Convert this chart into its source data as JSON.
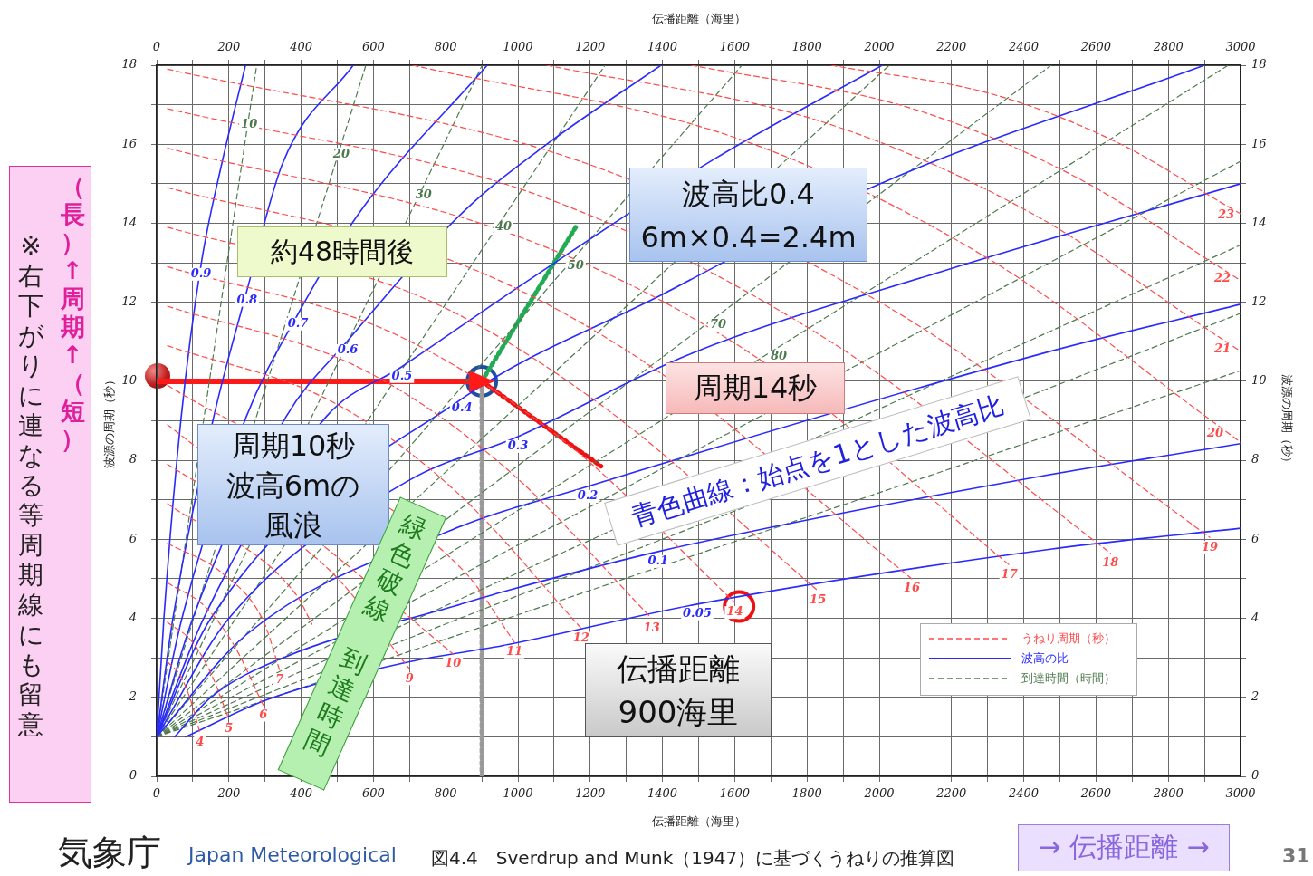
{
  "chart_data": {
    "type": "line",
    "xlabel": "伝播距離（海里）",
    "x2label": "伝播距離（海里）",
    "ylabel": "波源の周期（秒）",
    "y2label": "波源の周期（秒）",
    "xlim": [
      0,
      3000
    ],
    "x2lim": [
      0,
      3000
    ],
    "ylim": [
      0,
      18
    ],
    "y2lim": [
      0,
      18
    ],
    "xticks": [
      0,
      {
        "value": 100,
        "label": null
      },
      200,
      {
        "value": 300,
        "label": null
      },
      400,
      {
        "value": 500,
        "label": null
      },
      600,
      {
        "value": 700,
        "label": null
      },
      800,
      {
        "value": 900,
        "label": null
      },
      1000,
      {
        "value": 1100,
        "label": null
      },
      1200,
      {
        "value": 1300,
        "label": null
      },
      1400,
      {
        "value": 1500,
        "label": null
      },
      1600,
      {
        "value": 1700,
        "label": null
      },
      1800,
      {
        "value": 1900,
        "label": null
      },
      2000,
      {
        "value": 2100,
        "label": null
      },
      2200,
      {
        "value": 2300,
        "label": null
      },
      2400,
      {
        "value": 2500,
        "label": null
      },
      2600,
      {
        "value": 2700,
        "label": null
      },
      2800,
      {
        "value": 2900,
        "label": null
      },
      3000
    ],
    "x2ticks": [
      0,
      {
        "value": 100,
        "label": null
      },
      200,
      {
        "value": 300,
        "label": null
      },
      400,
      {
        "value": 500,
        "label": null
      },
      600,
      {
        "value": 700,
        "label": null
      },
      800,
      {
        "value": 900,
        "label": null
      },
      1000,
      {
        "value": 1100,
        "label": null
      },
      1200,
      {
        "value": 1300,
        "label": null
      },
      1400,
      {
        "value": 1500,
        "label": null
      },
      1600,
      {
        "value": 1700,
        "label": null
      },
      1800,
      {
        "value": 1900,
        "label": null
      },
      2000,
      {
        "value": 2100,
        "label": null
      },
      2200,
      {
        "value": 2300,
        "label": null
      },
      2400,
      {
        "value": 2500,
        "label": null
      },
      2600,
      {
        "value": 2700,
        "label": null
      },
      2800,
      {
        "value": 2900,
        "label": null
      },
      3000
    ],
    "yticks": [
      0,
      {
        "value": 1,
        "label": null
      },
      2,
      {
        "value": 3,
        "label": null
      },
      4,
      {
        "value": 5,
        "label": null
      },
      6,
      {
        "value": 7,
        "label": null
      },
      8,
      {
        "value": 9,
        "label": null
      },
      10,
      {
        "value": 11,
        "label": null
      },
      12,
      {
        "value": 13,
        "label": null
      },
      14,
      {
        "value": 15,
        "label": null
      },
      16,
      {
        "value": 17,
        "label": null
      },
      18
    ],
    "y2ticks": [
      0,
      {
        "value": 1,
        "label": null
      },
      2,
      {
        "value": 3,
        "label": null
      },
      4,
      {
        "value": 5,
        "label": null
      },
      6,
      {
        "value": 7,
        "label": null
      },
      8,
      {
        "value": 9,
        "label": null
      },
      10,
      {
        "value": 11,
        "label": null
      },
      12,
      {
        "value": 13,
        "label": null
      },
      14,
      {
        "value": 15,
        "label": null
      },
      16,
      {
        "value": 17,
        "label": null
      },
      18
    ],
    "grid": true,
    "legend": "bottom right",
    "series": [
      {
        "name": "うねり周期（秒）",
        "color": "#ff4a4a",
        "line_style": "dashed",
        "x": [
          30,
          66,
          93,
          120
        ],
        "values": [
          2.9,
          2.54,
          1.96,
          1.1
        ]
      },
      {
        "color": "#ff4a4a",
        "line_style": "dashed",
        "x": [
          30,
          98,
          149,
          200
        ],
        "values": [
          3.9,
          3.41,
          2.63,
          1.45
        ]
      },
      {
        "color": "#ff4a4a",
        "line_style": "dashed",
        "x": [
          30,
          136,
          216,
          295
        ],
        "values": [
          4.9,
          4.28,
          3.29,
          1.8
        ]
      },
      {
        "color": "#ff4a4a",
        "line_style": "dashed",
        "x": [
          30,
          182,
          296,
          340
        ],
        "values": [
          5.9,
          5.14,
          3.92,
          2.7
        ]
      },
      {
        "color": "#ff4a4a",
        "line_style": "dashed",
        "x": [
          30,
          387,
          430
        ],
        "values": [
          6.9,
          4.59,
          3.85
        ]
      },
      {
        "color": "#ff4a4a",
        "line_style": "dashed",
        "x": [
          30,
          475,
          700
        ],
        "values": [
          7.9,
          5.25,
          2.72
        ]
      },
      {
        "color": "#ff4a4a",
        "line_style": "dashed",
        "x": [
          30,
          480,
          820
        ],
        "values": [
          8.9,
          5.7,
          3.1
        ]
      },
      {
        "color": "#ff4a4a",
        "line_style": "dashed",
        "x": [
          30,
          850,
          990
        ],
        "values": [
          9.9,
          5.2,
          3.4
        ]
      },
      {
        "color": "#ff4a4a",
        "line_style": "dashed",
        "x": [
          30,
          488,
          832,
          1175
        ],
        "values": [
          10.9,
          9.47,
          7.18,
          3.75
        ]
      },
      {
        "color": "#ff4a4a",
        "line_style": "dashed",
        "x": [
          30,
          566,
          968,
          1370
        ],
        "values": [
          11.9,
          10.32,
          7.79,
          4.0
        ]
      },
      {
        "color": "#ff4a4a",
        "line_style": "dashed",
        "x": [
          30,
          658,
          1129,
          1600
        ],
        "values": [
          12.9,
          11.2,
          8.48,
          4.4
        ]
      },
      {
        "color": "#ff4a4a",
        "line_style": "dashed",
        "x": [
          30,
          750,
          1230,
          1830
        ],
        "values": [
          13.9,
          12.06,
          9.4,
          4.7
        ]
      },
      {
        "color": "#ff4a4a",
        "line_style": "dashed",
        "x": [
          30,
          854,
          1380,
          2090
        ],
        "values": [
          14.9,
          12.92,
          10.3,
          5.0
        ]
      },
      {
        "color": "#ff4a4a",
        "line_style": "dashed",
        "x": [
          30,
          1020,
          1661,
          2360
        ],
        "values": [
          15.9,
          13.6,
          10.6,
          5.35
        ]
      },
      {
        "color": "#ff4a4a",
        "line_style": "dashed",
        "x": [
          30,
          1074,
          1857,
          2640
        ],
        "values": [
          16.9,
          14.65,
          11.05,
          5.65
        ]
      },
      {
        "color": "#ff4a4a",
        "line_style": "dashed",
        "x": [
          30,
          1184,
          2050,
          2915
        ],
        "values": [
          17.9,
          15.53,
          11.74,
          6.05
        ]
      },
      {
        "color": "#ff4a4a",
        "line_style": "dashed",
        "x": [
          709,
          1625,
          2313,
          2930,
          3000
        ],
        "values": [
          18,
          16.09,
          13.04,
          8.93,
          8.46
        ]
      },
      {
        "color": "#ff4a4a",
        "line_style": "dashed",
        "x": [
          1080,
          1848,
          2424,
          2950,
          3000
        ],
        "values": [
          18,
          16.55,
          14.24,
          11.06,
          10.76
        ]
      },
      {
        "color": "#ff4a4a",
        "line_style": "dashed",
        "x": [
          1480,
          2088,
          2544,
          2950,
          3000
        ],
        "values": [
          18,
          16.91,
          15.17,
          12.84,
          12.55
        ]
      },
      {
        "color": "#ff4a4a",
        "line_style": "dashed",
        "x": [
          1867,
          2320,
          2660,
          2960,
          3000
        ],
        "values": [
          18,
          17.25,
          16.04,
          14.45,
          14.24
        ]
      },
      {
        "name": "波高の比",
        "color": "#2a2aff",
        "line_style": "solid",
        "x": [
          0,
          20,
          68,
          123,
          180,
          246
        ],
        "values": [
          1,
          4,
          9.1,
          12.96,
          15.5,
          18
        ]
      },
      {
        "color": "#2a2aff",
        "line_style": "solid",
        "x": [
          0,
          45,
          158,
          250,
          348,
          544
        ],
        "values": [
          1,
          4,
          9.1,
          12.3,
          15.5,
          18
        ]
      },
      {
        "color": "#2a2aff",
        "line_style": "solid",
        "x": [
          0,
          70,
          248,
          391,
          559,
          915
        ],
        "values": [
          1,
          4,
          9.1,
          11.7,
          14.24,
          18
        ]
      },
      {
        "color": "#2a2aff",
        "line_style": "solid",
        "x": [
          0,
          100,
          358,
          529,
          850,
          1080,
          1396
        ],
        "values": [
          1,
          4,
          9.1,
          11.03,
          14.3,
          16,
          18
        ]
      },
      {
        "color": "#2a2aff",
        "line_style": "solid",
        "x": [
          0,
          130,
          469,
          679,
          1020,
          1539,
          2008
        ],
        "values": [
          1,
          4,
          9.1,
          10.37,
          12.5,
          15.6,
          18
        ]
      },
      {
        "color": "#2a2aff",
        "line_style": "solid",
        "x": [
          0,
          150,
          845,
          1400,
          1990,
          2900
        ],
        "values": [
          1,
          4,
          9.56,
          12.2,
          14.95,
          18
        ]
      },
      {
        "color": "#2a2aff",
        "line_style": "solid",
        "x": [
          0,
          200,
          700,
          1000,
          1471,
          2173,
          3000
        ],
        "values": [
          1,
          4,
          7.5,
          8.6,
          10.67,
          12.78,
          15.0
        ]
      },
      {
        "color": "#2a2aff",
        "line_style": "solid",
        "x": [
          0,
          250,
          820,
          1193,
          2450,
          3000
        ],
        "values": [
          1,
          3.6,
          6.25,
          7.34,
          10.7,
          11.95
        ]
      },
      {
        "color": "#2a2aff",
        "line_style": "solid",
        "x": [
          50,
          150,
          350,
          820,
          970,
          1388,
          2450,
          3000
        ],
        "values": [
          1,
          2,
          3,
          4.3,
          4.7,
          5.69,
          7.6,
          8.42
        ]
      },
      {
        "color": "#2a2aff",
        "line_style": "solid",
        "x": [
          80,
          308,
          700,
          970,
          1496,
          2474,
          3000
        ],
        "values": [
          1,
          1.95,
          2.9,
          3.33,
          4.36,
          5.75,
          6.28
        ]
      },
      {
        "name": "到達時間（時間）",
        "color": "#4d7a4d",
        "line_style": "dashed",
        "x": [
          0,
          256,
          277
        ],
        "values": [
          1,
          16.74,
          18
        ]
      },
      {
        "color": "#4d7a4d",
        "line_style": "dashed",
        "x": [
          0,
          511,
          579
        ],
        "values": [
          1,
          16.0,
          18
        ]
      },
      {
        "color": "#4d7a4d",
        "line_style": "dashed",
        "x": [
          0,
          739,
          901
        ],
        "values": [
          1,
          14.95,
          18
        ]
      },
      {
        "color": "#4d7a4d",
        "line_style": "dashed",
        "x": [
          0,
          960,
          1241
        ],
        "values": [
          1,
          14.15,
          18
        ]
      },
      {
        "color": "#4d7a4d",
        "line_style": "dashed",
        "x": [
          0,
          1160,
          1620
        ],
        "values": [
          1,
          13.17,
          18
        ]
      },
      {
        "color": "#4d7a4d",
        "line_style": "dashed",
        "x": [
          0,
          2028
        ],
        "values": [
          1,
          18
        ]
      },
      {
        "color": "#4d7a4d",
        "line_style": "dashed",
        "x": [
          0,
          1554,
          2476
        ],
        "values": [
          1,
          11.67,
          18
        ]
      },
      {
        "color": "#4d7a4d",
        "line_style": "dashed",
        "x": [
          0,
          1722,
          2966
        ],
        "values": [
          1,
          10.87,
          18
        ]
      },
      {
        "color": "#4d7a4d",
        "line_style": "dashed",
        "x": [
          0,
          3000
        ],
        "values": [
          1,
          15.57
        ]
      },
      {
        "color": "#4d7a4d",
        "line_style": "dashed",
        "x": [
          0,
          3000
        ],
        "values": [
          1,
          13.45
        ]
      },
      {
        "color": "#4d7a4d",
        "line_style": "dashed",
        "x": [
          0,
          3000
        ],
        "values": [
          1,
          11.72
        ]
      },
      {
        "color": "#4d7a4d",
        "line_style": "dashed",
        "x": [
          0,
          3000
        ],
        "values": [
          1,
          10.27
        ]
      },
      {
        "type": "line",
        "color": "#ff1a1a",
        "line_style": "solid",
        "marker": "triangle",
        "x": [
          0,
          880
        ],
        "values": [
          10,
          10
        ]
      },
      {
        "type": "line",
        "color": "#22aa55",
        "line_style": "dotted",
        "x": [
          900,
          1160
        ],
        "values": [
          10,
          13.9
        ]
      },
      {
        "type": "line",
        "color": "#ee1111",
        "line_style": "dotted",
        "x": [
          900,
          1230
        ],
        "values": [
          10,
          7.85
        ]
      },
      {
        "type": "line",
        "color": "#999999",
        "line_style": "dotted",
        "x": [
          900,
          900
        ],
        "values": [
          10,
          0
        ]
      },
      {
        "type": "scatter",
        "color": "#1f4fa0",
        "marker": "circle",
        "x": [
          900
        ],
        "values": [
          10
        ]
      },
      {
        "type": "scatter",
        "color": "#ee1111",
        "marker": "circle",
        "x": [
          1612
        ],
        "values": [
          4.3
        ]
      }
    ],
    "annotations": [
      "約48時間後",
      "波高比0.4",
      "6m×0.4=2.4m",
      "周期14秒",
      "周期10秒",
      "波高6mの",
      "風浪",
      "青色曲線：始点を1とした波高比",
      "緑色破線",
      "到達時間",
      "伝播距離",
      "900海里",
      "（長）↑周期↑（短）",
      "※右下がりに連なる等周期線にも留意",
      "気象庁",
      "Japan Meteorological",
      "図4.4　Sverdrup and Munk（1947）に基づくうねりの推算図",
      "→ 伝播距離 →",
      "31",
      {
        "text": "0.9",
        "x": 123,
        "y": 12.96
      },
      {
        "text": "0.8",
        "x": 250,
        "y": 12.3
      },
      {
        "text": "0.7",
        "x": 391,
        "y": 11.7
      },
      {
        "text": "0.6",
        "x": 529,
        "y": 11.03
      },
      {
        "text": "0.5",
        "x": 679,
        "y": 10.37
      },
      {
        "text": "0.4",
        "x": 845,
        "y": 9.56
      },
      {
        "text": "0.3",
        "x": 1000,
        "y": 8.6
      },
      {
        "text": "0.2",
        "x": 1193,
        "y": 7.34
      },
      {
        "text": "0.1",
        "x": 1388,
        "y": 5.69
      },
      {
        "text": "0.05",
        "x": 1496,
        "y": 4.36
      },
      {
        "text": "4",
        "x": 120,
        "y": 1.1
      },
      {
        "text": "5",
        "x": 200,
        "y": 1.45
      },
      {
        "text": "6",
        "x": 295,
        "y": 1.8
      },
      {
        "text": "7",
        "x": 340,
        "y": 2.7
      },
      {
        "text": "9",
        "x": 700,
        "y": 2.72
      },
      {
        "text": "10",
        "x": 820,
        "y": 3.1
      },
      {
        "text": "11",
        "x": 990,
        "y": 3.4
      },
      {
        "text": "12",
        "x": 1175,
        "y": 3.75
      },
      {
        "text": "13",
        "x": 1370,
        "y": 4.0
      },
      {
        "text": "14",
        "x": 1600,
        "y": 4.4
      },
      {
        "text": "15",
        "x": 1830,
        "y": 4.7
      },
      {
        "text": "16",
        "x": 2090,
        "y": 5.0
      },
      {
        "text": "17",
        "x": 2360,
        "y": 5.35
      },
      {
        "text": "18",
        "x": 2640,
        "y": 5.65
      },
      {
        "text": "19",
        "x": 2915,
        "y": 6.05
      },
      {
        "text": "20",
        "x": 2930,
        "y": 8.93
      },
      {
        "text": "21",
        "x": 2950,
        "y": 11.06
      },
      {
        "text": "22",
        "x": 2950,
        "y": 12.84
      },
      {
        "text": "23",
        "x": 2960,
        "y": 14.45
      },
      {
        "text": "10",
        "x": 256,
        "y": 16.74
      },
      {
        "text": "20",
        "x": 511,
        "y": 16.0
      },
      {
        "text": "30",
        "x": 739,
        "y": 14.95
      },
      {
        "text": "40",
        "x": 960,
        "y": 14.15
      },
      {
        "text": "50",
        "x": 1160,
        "y": 13.17
      },
      {
        "text": "70",
        "x": 1554,
        "y": 11.67
      },
      {
        "text": "80",
        "x": 1722,
        "y": 10.87
      }
    ]
  }
}
